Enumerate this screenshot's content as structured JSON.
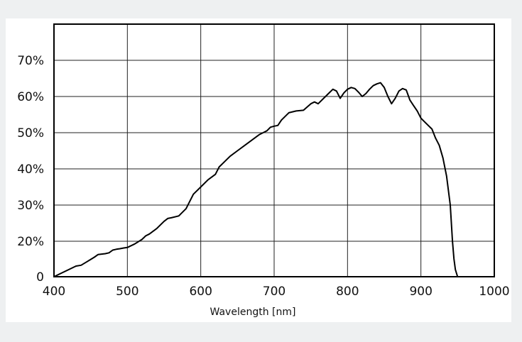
{
  "chart_data": {
    "type": "line",
    "title": "",
    "xlabel": "Wavelength [nm]",
    "ylabel": "",
    "xlim": [
      400,
      1000
    ],
    "ylim": [
      0,
      80
    ],
    "x_ticks": [
      400,
      500,
      600,
      700,
      800,
      900,
      1000
    ],
    "x_tick_labels": [
      "400",
      "500",
      "600",
      "700",
      "800",
      "900",
      "1000"
    ],
    "y_ticks": [
      0,
      20,
      30,
      40,
      50,
      60,
      70
    ],
    "y_tick_labels": [
      "0",
      "20%",
      "30%",
      "40%",
      "50%",
      "60%",
      "70%"
    ],
    "grid": true,
    "legend": "none",
    "line_color": "#000000",
    "series": [
      {
        "x": [
          400,
          410,
          420,
          430,
          437,
          445,
          455,
          460,
          470,
          475,
          480,
          485,
          490,
          495,
          500,
          510,
          520,
          525,
          530,
          540,
          550,
          555,
          560,
          570,
          580,
          590,
          600,
          610,
          620,
          625,
          630,
          640,
          650,
          660,
          670,
          680,
          690,
          695,
          700,
          705,
          710,
          720,
          730,
          740,
          750,
          755,
          760,
          770,
          775,
          780,
          785,
          790,
          795,
          800,
          805,
          810,
          815,
          820,
          825,
          830,
          835,
          840,
          845,
          850,
          855,
          860,
          865,
          870,
          875,
          880,
          885,
          890,
          895,
          900,
          905,
          910,
          915,
          920,
          925,
          930,
          935,
          940,
          943,
          945,
          947,
          950
        ],
        "y": [
          0,
          2,
          4,
          6,
          6.5,
          8.5,
          11,
          12.5,
          13,
          13.5,
          15,
          15.5,
          15.8,
          16.2,
          16.5,
          18.5,
          20.5,
          21.5,
          22,
          23.5,
          25.5,
          26.3,
          26.5,
          27,
          29,
          33,
          35,
          37,
          38.5,
          40.5,
          41.5,
          43.5,
          45,
          46.5,
          48,
          49.5,
          50.5,
          51.5,
          51.8,
          52,
          53.5,
          55.5,
          56,
          56.2,
          58,
          58.5,
          58,
          60,
          61,
          62,
          61.5,
          59.5,
          61,
          62,
          62.5,
          62.2,
          61.2,
          60,
          60.8,
          62,
          63,
          63.5,
          63.8,
          62.5,
          60,
          58,
          59.5,
          61.5,
          62.2,
          61.8,
          59,
          57.5,
          56,
          54,
          53,
          52,
          51,
          48.5,
          46.5,
          43,
          38,
          30,
          20,
          10,
          4,
          0
        ]
      }
    ]
  }
}
